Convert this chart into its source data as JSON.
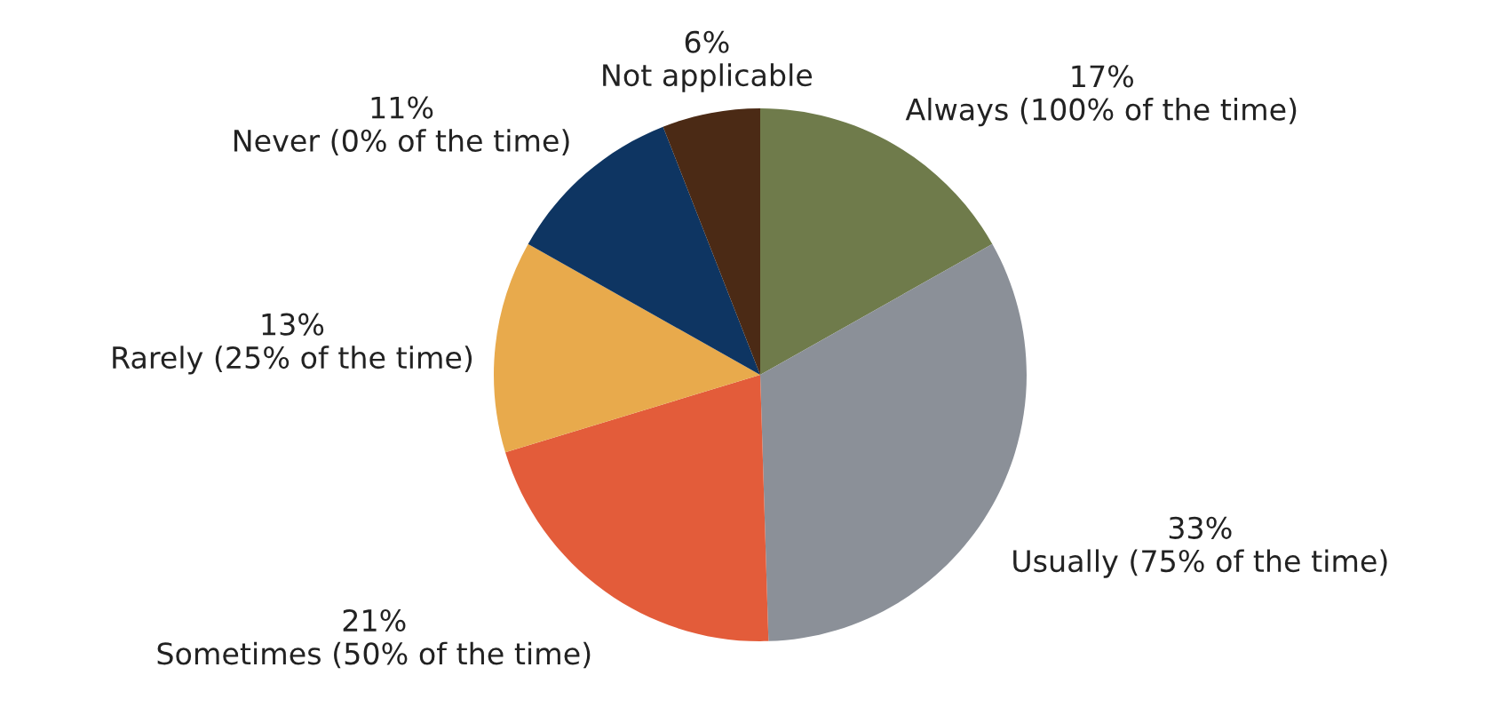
{
  "chart_data": {
    "type": "pie",
    "categories": [
      "Always (100% of the time)",
      "Usually (75% of the time)",
      "Sometimes (50% of the time)",
      "Rarely (25% of the time)",
      "Never (0% of the time)",
      "Not applicable"
    ],
    "values": [
      17,
      33,
      21,
      13,
      11,
      6
    ],
    "value_labels": [
      "17%",
      "33%",
      "21%",
      "13%",
      "11%",
      "6%"
    ],
    "colors": [
      "#6f7b4b",
      "#8b9098",
      "#e35c3a",
      "#e8aa4c",
      "#0e3562",
      "#4b2a15"
    ]
  }
}
